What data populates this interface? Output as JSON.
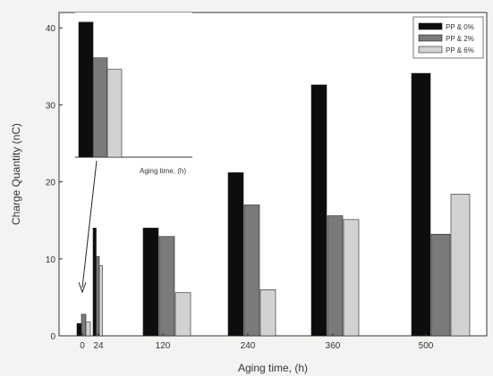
{
  "chart_data": {
    "type": "bar",
    "title": "",
    "xlabel": "Aging time, (h)",
    "ylabel": "Charge Quantity (nC)",
    "ylim": [
      0,
      42
    ],
    "yticks": [
      0,
      10,
      20,
      30,
      40
    ],
    "categories": [
      "0",
      "24",
      "120",
      "240",
      "360",
      "500"
    ],
    "series": [
      {
        "name": "PP & 0%",
        "values": [
          1.6,
          14.0,
          14.0,
          21.2,
          32.6,
          34.1
        ],
        "color": "#0d0d0d"
      },
      {
        "name": "PP & 2%",
        "values": [
          2.8,
          10.3,
          12.9,
          17.0,
          15.6,
          13.2
        ],
        "color": "#7a7a7a"
      },
      {
        "name": "PP & 6%",
        "values": [
          1.8,
          9.1,
          5.6,
          6.0,
          15.1,
          18.4
        ],
        "color": "#d2d2d2"
      }
    ],
    "legend": {
      "position": "top-right"
    },
    "grid": false,
    "inset": {
      "xlabel": "Aging time, (h)",
      "values": [
        14.0,
        10.3,
        9.1
      ],
      "ylim": [
        0,
        15
      ]
    }
  }
}
